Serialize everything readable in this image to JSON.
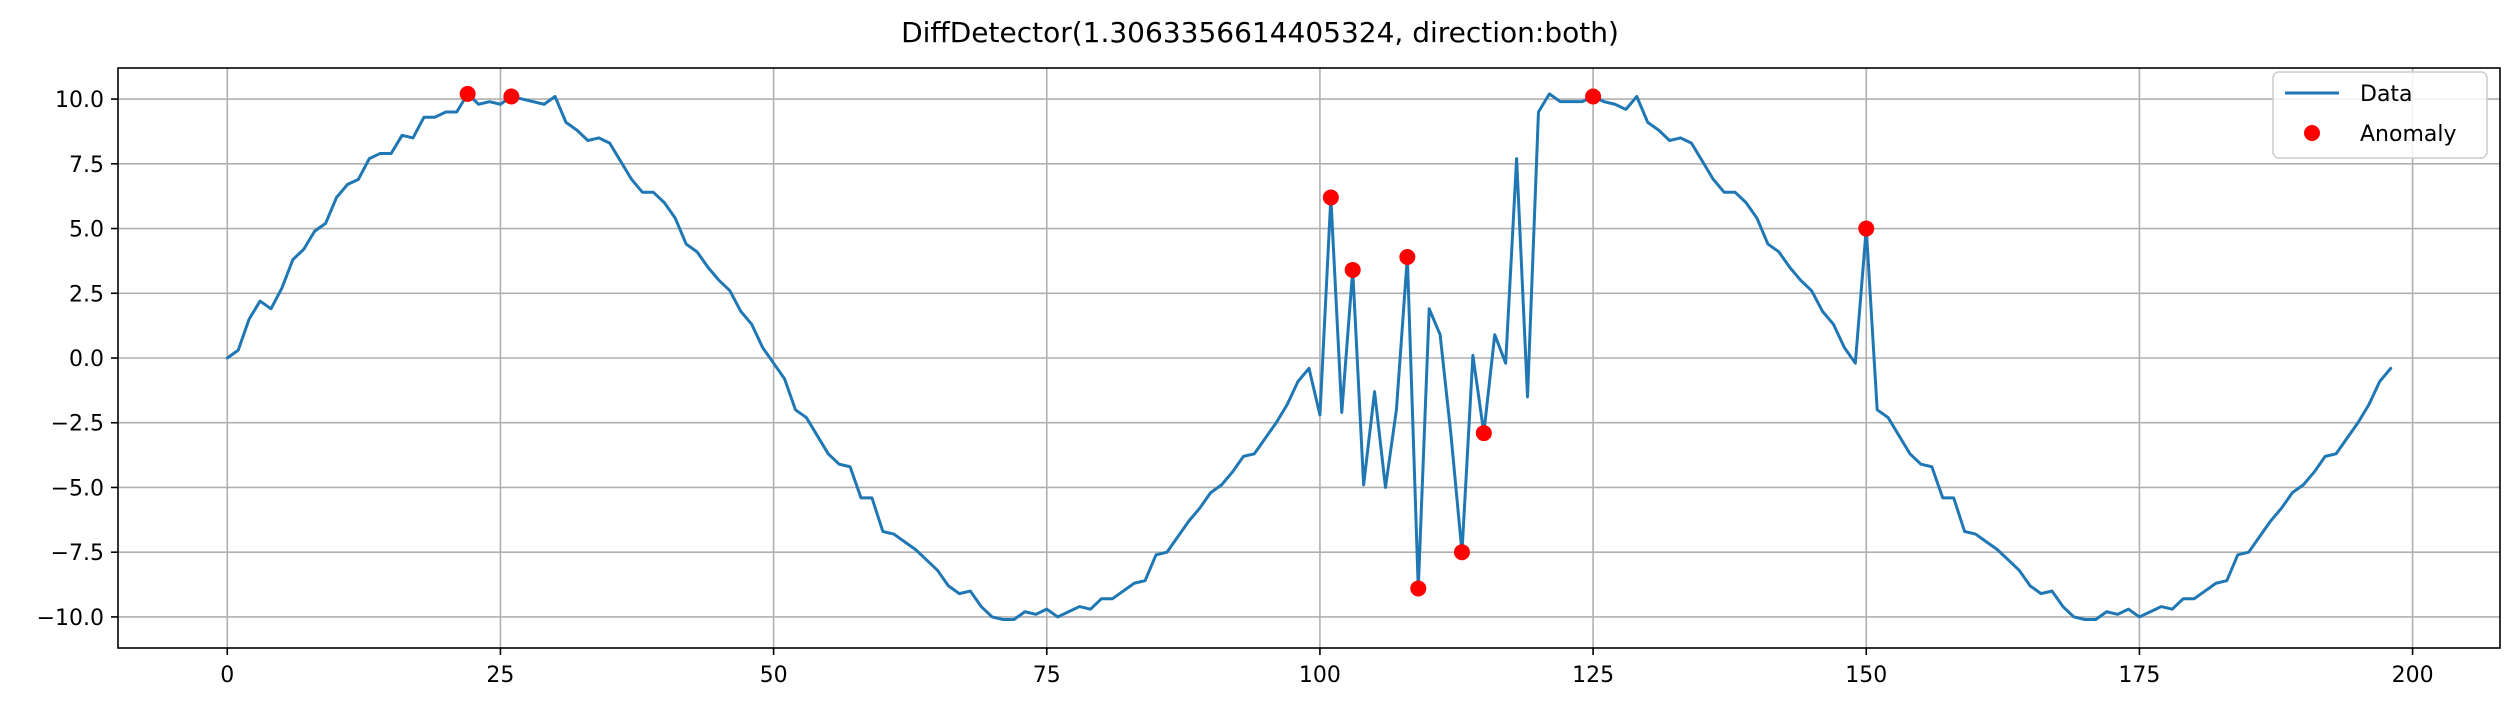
{
  "chart_data": {
    "type": "line",
    "title": "DiffDetector(1.3063356614405324, direction:both)",
    "xlabel": "",
    "ylabel": "",
    "xlim": [
      -10,
      208
    ],
    "ylim": [
      -11.2,
      11.2
    ],
    "x_ticks": [
      0,
      25,
      50,
      75,
      100,
      125,
      150,
      175,
      200
    ],
    "x_tick_labels": [
      "0",
      "25",
      "50",
      "75",
      "100",
      "125",
      "150",
      "175",
      "200"
    ],
    "y_ticks": [
      -10.0,
      -7.5,
      -5.0,
      -2.5,
      0.0,
      2.5,
      5.0,
      7.5,
      10.0
    ],
    "y_tick_labels": [
      "−10.0",
      "−7.5",
      "−5.0",
      "−2.5",
      "0.0",
      "2.5",
      "5.0",
      "7.5",
      "10.0"
    ],
    "grid": true,
    "legend_position": "top-right",
    "series": [
      {
        "name": "Data",
        "kind": "line",
        "color": "#1f77b4",
        "x": [
          0,
          1,
          2,
          3,
          4,
          5,
          6,
          7,
          8,
          9,
          10,
          11,
          12,
          13,
          14,
          15,
          16,
          17,
          18,
          19,
          20,
          21,
          22,
          23,
          24,
          25,
          26,
          27,
          28,
          29,
          30,
          31,
          32,
          33,
          34,
          35,
          36,
          37,
          38,
          39,
          40,
          41,
          42,
          43,
          44,
          45,
          46,
          47,
          48,
          49,
          50,
          51,
          52,
          53,
          54,
          55,
          56,
          57,
          58,
          59,
          60,
          61,
          62,
          63,
          64,
          65,
          66,
          67,
          68,
          69,
          70,
          71,
          72,
          73,
          74,
          75,
          76,
          77,
          78,
          79,
          80,
          81,
          82,
          83,
          84,
          85,
          86,
          87,
          88,
          89,
          90,
          91,
          92,
          93,
          94,
          95,
          96,
          97,
          98,
          99,
          100,
          101,
          102,
          103,
          104,
          105,
          106,
          107,
          108,
          109,
          110,
          111,
          112,
          113,
          114,
          115,
          116,
          117,
          118,
          119,
          120,
          121,
          122,
          123,
          124,
          125,
          126,
          127,
          128,
          129,
          130,
          131,
          132,
          133,
          134,
          135,
          136,
          137,
          138,
          139,
          140,
          141,
          142,
          143,
          144,
          145,
          146,
          147,
          148,
          149,
          150,
          151,
          152,
          153,
          154,
          155,
          156,
          157,
          158,
          159,
          160,
          161,
          162,
          163,
          164,
          165,
          166,
          167,
          168,
          169,
          170,
          171,
          172,
          173,
          174,
          175,
          176,
          177,
          178,
          179,
          180,
          181,
          182,
          183,
          184,
          185,
          186,
          187,
          188,
          189,
          190,
          191,
          192,
          193,
          194,
          195,
          196,
          197,
          198
        ],
        "y": [
          0.0,
          0.3,
          1.5,
          2.2,
          1.9,
          2.7,
          3.8,
          4.2,
          4.9,
          5.2,
          6.2,
          6.7,
          6.9,
          7.7,
          7.9,
          7.9,
          8.6,
          8.5,
          9.3,
          9.3,
          9.5,
          9.5,
          10.2,
          9.8,
          9.9,
          9.8,
          10.1,
          10.0,
          9.9,
          9.8,
          10.1,
          9.1,
          8.8,
          8.4,
          8.5,
          8.3,
          7.6,
          6.9,
          6.4,
          6.4,
          6.0,
          5.4,
          4.4,
          4.1,
          3.5,
          3.0,
          2.6,
          1.8,
          1.3,
          0.4,
          -0.2,
          -0.8,
          -2.0,
          -2.3,
          -3.0,
          -3.7,
          -4.1,
          -4.2,
          -5.4,
          -5.4,
          -6.7,
          -6.8,
          -7.1,
          -7.4,
          -7.8,
          -8.2,
          -8.8,
          -9.1,
          -9.0,
          -9.6,
          -10.0,
          -10.1,
          -10.1,
          -9.8,
          -9.9,
          -9.7,
          -10.0,
          -9.8,
          -9.6,
          -9.7,
          -9.3,
          -9.3,
          -9.0,
          -8.7,
          -8.6,
          -7.6,
          -7.5,
          -6.9,
          -6.3,
          -5.8,
          -5.2,
          -4.9,
          -4.4,
          -3.8,
          -3.7,
          -3.1,
          -2.5,
          -1.8,
          -0.9,
          -0.4,
          -2.2,
          6.2,
          -2.1,
          3.4,
          -4.9,
          -1.3,
          -5.0,
          -2.0,
          3.9,
          -8.9,
          1.9,
          0.9,
          -3.0,
          -7.5,
          0.1,
          -2.9,
          0.9,
          -0.2,
          7.7,
          -1.5,
          9.5,
          10.2,
          9.9,
          9.9,
          9.9,
          10.1,
          9.9,
          9.8,
          9.6,
          10.1,
          9.1,
          8.8,
          8.4,
          8.5,
          8.3,
          7.6,
          6.9,
          6.4,
          6.4,
          6.0,
          5.4,
          4.4,
          4.1,
          3.5,
          3.0,
          2.6,
          1.8,
          1.3,
          0.4,
          -0.2,
          5.0,
          -2.0,
          -2.3,
          -3.0,
          -3.7,
          -4.1,
          -4.2,
          -5.4,
          -5.4,
          -6.7,
          -6.8,
          -7.1,
          -7.4,
          -7.8,
          -8.2,
          -8.8,
          -9.1,
          -9.0,
          -9.6,
          -10.0,
          -10.1,
          -10.1,
          -9.8,
          -9.9,
          -9.7,
          -10.0,
          -9.8,
          -9.6,
          -9.7,
          -9.3,
          -9.3,
          -9.0,
          -8.7,
          -8.6,
          -7.6,
          -7.5,
          -6.9,
          -6.3,
          -5.8,
          -5.2,
          -4.9,
          -4.4,
          -3.8,
          -3.7,
          -3.1,
          -2.5,
          -1.8,
          -0.9,
          -0.4
        ]
      },
      {
        "name": "Anomaly",
        "kind": "scatter",
        "color": "#ff0000",
        "x": [
          22,
          26,
          101,
          103,
          108,
          109,
          113,
          115,
          125,
          150
        ],
        "y": [
          10.2,
          10.1,
          6.2,
          3.4,
          3.9,
          -8.9,
          -7.5,
          -2.9,
          10.1,
          5.0
        ]
      }
    ]
  }
}
